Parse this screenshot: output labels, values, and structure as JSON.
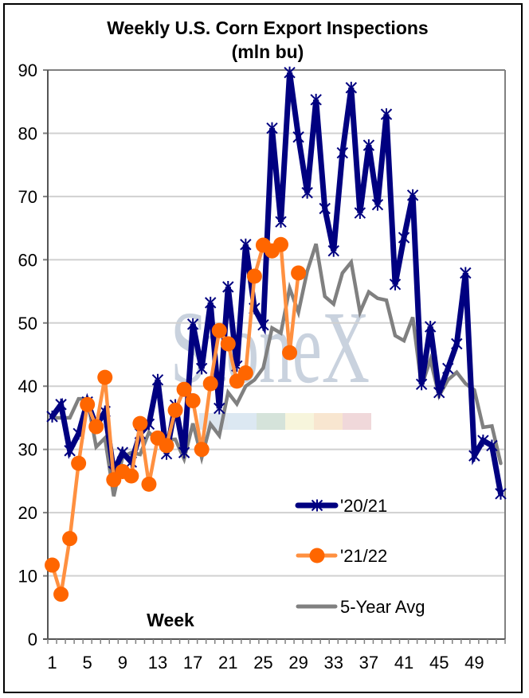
{
  "chart_data": {
    "type": "line",
    "title": "Weekly U.S. Corn Export Inspections",
    "subtitle": "(mln bu)",
    "xlabel": "Week",
    "ylabel": "",
    "ylim": [
      0,
      90
    ],
    "yticks": [
      0,
      10,
      20,
      30,
      40,
      50,
      60,
      70,
      80,
      90
    ],
    "x_categories_count": 52,
    "xtick_labels": [
      "1",
      "5",
      "9",
      "13",
      "17",
      "21",
      "25",
      "29",
      "33",
      "37",
      "41",
      "45",
      "49"
    ],
    "xtick_label_weeks": [
      1,
      5,
      9,
      13,
      17,
      21,
      25,
      29,
      33,
      37,
      41,
      45,
      49
    ],
    "grid": "horizontal",
    "legend_position": "bottom-right",
    "watermark": "StoneX",
    "series": [
      {
        "name": "'20/21",
        "color": "#000080",
        "marker": "star",
        "values": [
          35.2,
          37.1,
          29.8,
          32.5,
          37.5,
          33.7,
          36.0,
          26.5,
          29.5,
          28.0,
          32.5,
          34.0,
          41.0,
          29.3,
          37.0,
          29.5,
          49.8,
          42.8,
          53.2,
          36.5,
          55.7,
          43.2,
          62.4,
          52.3,
          49.7,
          80.8,
          66.0,
          89.6,
          79.4,
          70.6,
          85.3,
          68.1,
          61.4,
          76.9,
          87.2,
          67.4,
          78.1,
          68.7,
          83.0,
          56.1,
          63.5,
          70.2,
          40.3,
          49.4,
          39.0,
          42.8,
          46.7,
          57.9,
          29.0,
          31.4,
          30.6,
          23.0
        ]
      },
      {
        "name": "'21/22",
        "color": "#ff9040",
        "marker_color": "#ff6600",
        "marker": "circle",
        "values": [
          11.7,
          7.1,
          15.9,
          27.8,
          37.1,
          33.6,
          41.4,
          25.2,
          26.5,
          25.8,
          34.1,
          24.5,
          31.8,
          30.6,
          36.2,
          39.5,
          37.7,
          30.0,
          40.4,
          48.8,
          46.7,
          40.8,
          42.1,
          57.4,
          62.3,
          61.4,
          62.4,
          45.3,
          57.9
        ]
      },
      {
        "name": "5-Year Avg",
        "color": "#808080",
        "marker": "none",
        "values": [
          35.0,
          35.0,
          35.0,
          38.0,
          38.0,
          30.4,
          31.8,
          22.6,
          28.8,
          29.5,
          29.2,
          32.7,
          31.3,
          31.5,
          31.6,
          28.5,
          34.1,
          28.7,
          34.0,
          32.2,
          39.0,
          37.2,
          40.0,
          41.0,
          42.9,
          49.2,
          48.4,
          55.5,
          51.7,
          58.2,
          62.5,
          54.2,
          53.0,
          57.9,
          59.6,
          51.7,
          54.9,
          53.9,
          53.6,
          48.0,
          47.2,
          50.9,
          40.0,
          44.2,
          38.5,
          41.0,
          42.2,
          40.4,
          39.4,
          33.5,
          33.7,
          27.8
        ]
      }
    ]
  }
}
